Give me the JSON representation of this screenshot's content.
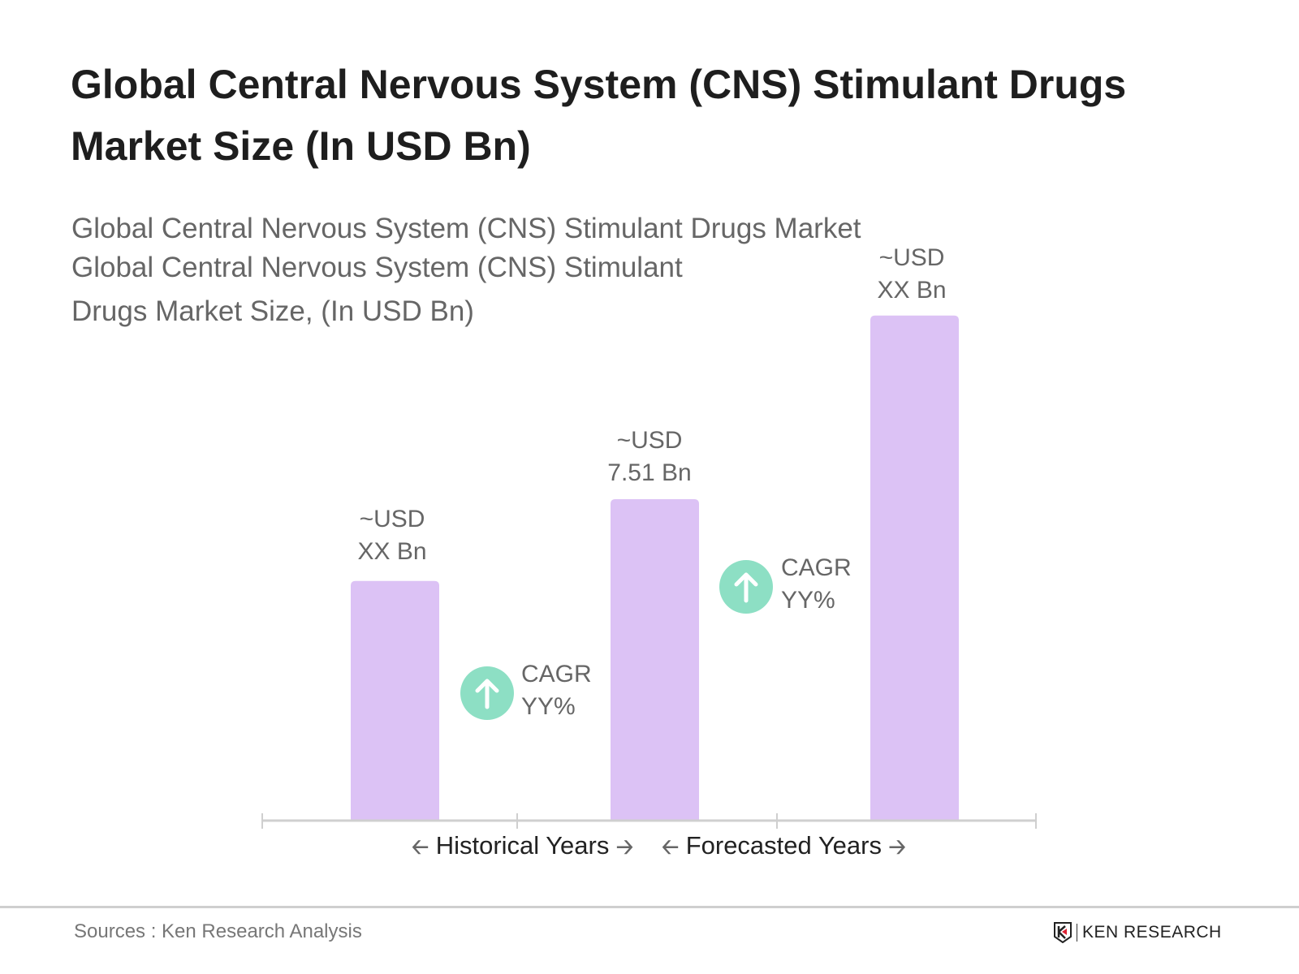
{
  "chart_data": {
    "type": "bar",
    "title": "Global Central Nervous System (CNS) Stimulant Drugs Market Size (In USD Bn)",
    "subtitle_lines": [
      "Global Central Nervous System (CNS) Stimulant Drugs Market",
      "Global Central Nervous System (CNS) Stimulant",
      "Drugs Market Size, (In USD Bn)"
    ],
    "categories": [
      "",
      "",
      ""
    ],
    "values": [
      5.6,
      7.51,
      11.8
    ],
    "data_labels": [
      [
        "~USD",
        "XX Bn"
      ],
      [
        "~USD",
        "7.51 Bn"
      ],
      [
        "~USD",
        "XX Bn"
      ]
    ],
    "bar_color": "#dcc2f5",
    "cagr": [
      {
        "label": "CAGR",
        "value": "YY%"
      },
      {
        "label": "CAGR",
        "value": "YY%"
      }
    ],
    "cagr_color": "#8ddfc4",
    "x_sections": [
      "Historical Years",
      "Forecasted Years"
    ],
    "grid": false,
    "ylim": [
      0,
      12
    ]
  },
  "footer": {
    "sources": "Sources : Ken Research Analysis",
    "logo_text": "KEN RESEARCH"
  }
}
